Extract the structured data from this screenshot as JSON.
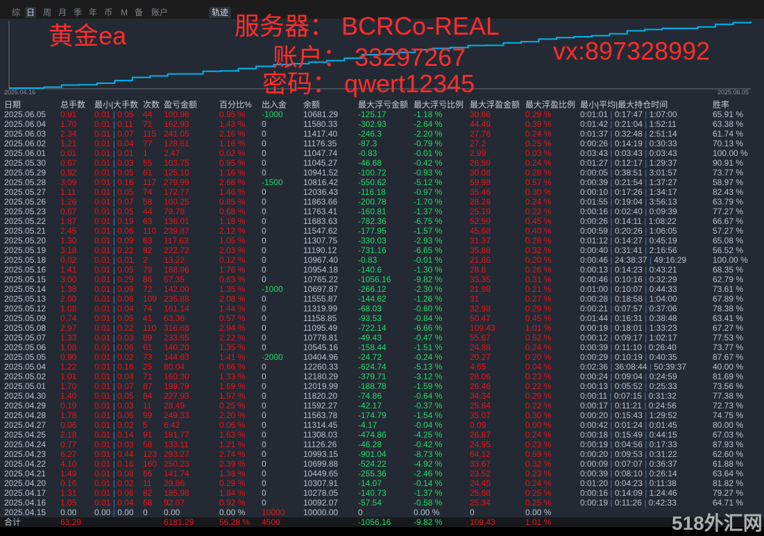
{
  "tabs": [
    "综",
    "日",
    "周",
    "月",
    "季",
    "年",
    "币",
    "M",
    "备",
    "账户"
  ],
  "active_tab": "日",
  "track_button": "轨迹",
  "overlay": {
    "title": "黄金ea",
    "server": "服务器： BCRCo-REAL",
    "account": "账户： 33297267",
    "password": "密码： qwert12345",
    "contact": "vx:897328992"
  },
  "chart": {
    "x_start": "2025.04.16",
    "x_end": "2025.06.05",
    "line_color": "#00b4f0"
  },
  "columns": [
    "日期",
    "总手数",
    "最小|大手数",
    "次数",
    "盈亏金额",
    "百分比%",
    "出入金",
    "余额",
    "最大浮亏金额",
    "最大浮亏比例",
    "最大浮盈金额",
    "最大浮盈比例",
    "最小|平均|最大持仓时间",
    "胜率"
  ],
  "rows": [
    [
      "2025.06.05",
      "0.91",
      "0.01 | 0.05",
      "44",
      "100.96",
      "0.95 %",
      "-1000",
      "10681.29",
      "-125.17",
      "-1.18 %",
      "30.66",
      "0.29 %",
      "0:01:01 | 0:17:47 | 1:07:00",
      "65.91 %"
    ],
    [
      "2025.06.04",
      "1.70",
      "0.01 | 0.11",
      "71",
      "162.93",
      "1.43 %",
      "0",
      "11580.33",
      "-302.93",
      "-2.64 %",
      "44.49",
      "0.39 %",
      "0:01:42 | 0:21:04 | 1:52:11",
      "63.38 %"
    ],
    [
      "2025.06.03",
      "2.34",
      "0.01 | 0.07",
      "115",
      "241.05",
      "2.16 %",
      "0",
      "11417.40",
      "-246.3",
      "-2.20 %",
      "27.76",
      "0.24 %",
      "0:01:37 | 0:32:48 | 2:51:14",
      "61.74 %"
    ],
    [
      "2025.06.02",
      "1.21",
      "0.01 | 0.04",
      "77",
      "128.61",
      "1.16 %",
      "0",
      "11176.35",
      "-87.3",
      "-0.79 %",
      "27.2",
      "0.25 %",
      "0:00:26 | 0:14:19 | 0:30:33",
      "70.13 %"
    ],
    [
      "2025.06.01",
      "0.01",
      "0.01 | 0.01",
      "1",
      "2.47",
      "0.02 %",
      "0",
      "11047.74",
      "-0.83",
      "-0.01 %",
      "2.99",
      "0.03 %",
      "0:03:43 | 0:03:43 | 0:03:43",
      "100.00 %"
    ],
    [
      "2025.05.30",
      "0.67",
      "0.01 | 0.03",
      "55",
      "103.75",
      "0.95 %",
      "0",
      "11045.27",
      "-46.68",
      "-0.42 %",
      "26.59",
      "0.24 %",
      "0:01:27 | 0:12:17 | 1:29:37",
      "90.91 %"
    ],
    [
      "2025.05.29",
      "0.92",
      "0.01 | 0.05",
      "61",
      "125.10",
      "1.16 %",
      "0",
      "10941.52",
      "-100.72",
      "-0.93 %",
      "30.08",
      "0.28 %",
      "0:00:05 | 0:38:51 | 3:01:57",
      "73.77 %"
    ],
    [
      "2025.05.28",
      "3.09",
      "0.01 | 0.16",
      "117",
      "279.99",
      "2.66 %",
      "-1500",
      "10816.42",
      "-550.62",
      "-5.12 %",
      "59.98",
      "0.57 %",
      "0:00:39 | 0:21:54 | 1:37:27",
      "58.97 %"
    ],
    [
      "2025.05.27",
      "1.11",
      "0.01 | 0.05",
      "74",
      "172.77",
      "1.46 %",
      "0",
      "12036.43",
      "-116.18",
      "-0.97 %",
      "35.46",
      "0.30 %",
      "0:00:10 | 0:17:26 | 1:34:17",
      "82.43 %"
    ],
    [
      "2025.05.26",
      "1.26",
      "0.01 | 0.07",
      "58",
      "100.25",
      "0.85 %",
      "0",
      "11863.66",
      "-200.78",
      "-1.70 %",
      "28.28",
      "0.24 %",
      "0:01:55 | 0:19:04 | 3:56:13",
      "63.79 %"
    ],
    [
      "2025.05.23",
      "0.67",
      "0.01 | 0.05",
      "44",
      "79.78",
      "0.68 %",
      "0",
      "11763.41",
      "-160.81",
      "-1.37 %",
      "25.19",
      "0.22 %",
      "0:00:16 | 0:02:40 | 0:09:39",
      "77.27 %"
    ],
    [
      "2025.05.22",
      "1.87",
      "0.01 | 0.19",
      "63",
      "136.01",
      "1.18 %",
      "0",
      "11683.63",
      "-782.36",
      "-6.75 %",
      "52.59",
      "0.45 %",
      "0:00:26 | 0:14:11 | 1:08:22",
      "66.67 %"
    ],
    [
      "2025.05.21",
      "2.45",
      "0.01 | 0.06",
      "110",
      "239.87",
      "2.12 %",
      "0",
      "11547.62",
      "-177.95",
      "-1.57 %",
      "45.68",
      "0.40 %",
      "0:00:59 | 0:20:26 | 1:06:05",
      "57.27 %"
    ],
    [
      "2025.05.20",
      "1.30",
      "0.01 | 0.09",
      "63",
      "117.63",
      "1.05 %",
      "0",
      "11307.75",
      "-330.03",
      "-2.93 %",
      "31.37",
      "0.28 %",
      "0:01:12 | 0:14:27 | 0:45:19",
      "65.08 %"
    ],
    [
      "2025.05.19",
      "3.18",
      "0.01 | 0.22",
      "92",
      "222.72",
      "2.03 %",
      "0",
      "11190.12",
      "-731.16",
      "-6.65 %",
      "35.88",
      "0.32 %",
      "0:00:40 | 0:31:41 | 2:16:56",
      "56.52 %"
    ],
    [
      "2025.05.18",
      "0.02",
      "0.01 | 0.01",
      "2",
      "13.22",
      "0.12 %",
      "0",
      "10967.40",
      "-0.83",
      "-0.01 %",
      "21.86",
      "0.20 %",
      "0:00:46 | 24:38:37 | 49:16:29",
      "100.00 %"
    ],
    [
      "2025.05.16",
      "1.41",
      "0.01 | 0.05",
      "79",
      "188.96",
      "1.76 %",
      "0",
      "10954.18",
      "-140.6",
      "-1.30 %",
      "28.8",
      "0.26 %",
      "0:00:13 | 0:14:23 | 0:43:21",
      "68.35 %"
    ],
    [
      "2025.05.15",
      "3.00",
      "0.01 | 0.29",
      "86",
      "67.35",
      "0.63 %",
      "0",
      "10765.22",
      "-1056.16",
      "-9.82 %",
      "33.35",
      "0.31 %",
      "0:00:46 | 0:10:16 | 0:32:29",
      "62.79 %"
    ],
    [
      "2025.05.14",
      "1.38",
      "0.01 | 0.09",
      "72",
      "142.00",
      "1.35 %",
      "-1000",
      "10697.87",
      "-266.12",
      "-2.30 %",
      "21.98",
      "0.21 %",
      "0:01:00 | 0:10:07 | 0:44:33",
      "73.61 %"
    ],
    [
      "2025.05.13",
      "2.00",
      "0.01 | 0.06",
      "109",
      "235.88",
      "2.08 %",
      "0",
      "11555.87",
      "-144.62",
      "-1.26 %",
      "31",
      "0.27 %",
      "0:00:28 | 0:18:58 | 1:04:00",
      "67.89 %"
    ],
    [
      "2025.05.12",
      "1.08",
      "0.01 | 0.04",
      "74",
      "161.14",
      "1.44 %",
      "0",
      "11319.99",
      "-68.03",
      "-0.60 %",
      "32.98",
      "0.29 %",
      "0:00:21 | 0:07:57 | 0:37:06",
      "78.38 %"
    ],
    [
      "2025.05.09",
      "0.74",
      "0.01 | 0.05",
      "41",
      "63.36",
      "0.57 %",
      "0",
      "11158.85",
      "-93.53",
      "-0.84 %",
      "50.47",
      "0.45 %",
      "0:01:44 | 0:16:31 | 0:38:48",
      "63.41 %"
    ],
    [
      "2025.05.08",
      "2.97",
      "0.01 | 0.22",
      "110",
      "316.68",
      "2.94 %",
      "0",
      "11095.49",
      "-722.14",
      "-6.66 %",
      "109.43",
      "1.01 %",
      "0:00:19 | 0:18:01 | 1:33:23",
      "67.27 %"
    ],
    [
      "2025.05.07",
      "1.33",
      "0.01 | 0.03",
      "89",
      "233.65",
      "2.22 %",
      "0",
      "10778.81",
      "-49.43",
      "-0.47 %",
      "55.67",
      "0.52 %",
      "0:00:12 | 0:09:17 | 1:02:17",
      "77.53 %"
    ],
    [
      "2025.05.06",
      "1.08",
      "0.01 | 0.06",
      "61",
      "140.20",
      "1.35 %",
      "0",
      "10545.16",
      "-158.44",
      "-1.51 %",
      "24.88",
      "0.24 %",
      "0:00:39 | 0:11:10 | 0:26:40",
      "73.77 %"
    ],
    [
      "2025.05.05",
      "0.90",
      "0.01 | 0.02",
      "73",
      "144.63",
      "1.41 %",
      "-2000",
      "10404.96",
      "-24.72",
      "-0.24 %",
      "20.27",
      "0.20 %",
      "0:00:29 | 0:10:19 | 0:40:35",
      "87.67 %"
    ],
    [
      "2025.05.04",
      "1.22",
      "0.01 | 0.16",
      "25",
      "80.04",
      "0.66 %",
      "0",
      "12260.33",
      "-624.74",
      "-5.13 %",
      "4.65",
      "0.04 %",
      "0:02:36 | 36:08:44 | 50:39:37",
      "40.00 %"
    ],
    [
      "2025.05.02",
      "1.01",
      "0.01 | 0.04",
      "71",
      "160.30",
      "1.33 %",
      "0",
      "12180.29",
      "-379.71",
      "-3.12 %",
      "28.06",
      "0.23 %",
      "0:00:24 | 0:09:04 | 0:24:59",
      "81.69 %"
    ],
    [
      "2025.05.01",
      "1.70",
      "0.01 | 0.07",
      "87",
      "199.79",
      "1.69 %",
      "0",
      "12019.99",
      "-188.78",
      "-1.59 %",
      "26.46",
      "0.22 %",
      "0:00:13 | 0:05:52 | 0:25:33",
      "73.56 %"
    ],
    [
      "2025.04.30",
      "1.40",
      "0.01 | 0.05",
      "84",
      "227.93",
      "1.97 %",
      "0",
      "11820.20",
      "-74.86",
      "-0.64 %",
      "34.34",
      "0.29 %",
      "0:00:11 | 0:07:15 | 0:31:32",
      "77.38 %"
    ],
    [
      "2025.04.29",
      "0.19",
      "0.01 | 0.03",
      "11",
      "28.49",
      "0.25 %",
      "0",
      "11592.27",
      "-42.17",
      "-0.37 %",
      "25.84",
      "0.22 %",
      "0:00:17 | 0:11:21 | 0:24:56",
      "72.73 %"
    ],
    [
      "2025.04.28",
      "1.78",
      "0.01 | 0.06",
      "99",
      "249.33",
      "2.20 %",
      "0",
      "11563.78",
      "-174.79",
      "-1.54 %",
      "35.07",
      "0.30 %",
      "0:00:20 | 0:15:43 | 1:29:52",
      "74.75 %"
    ],
    [
      "2025.04.27",
      "0.06",
      "0.01 | 0.02",
      "5",
      "6.42",
      "0.06 %",
      "0",
      "11314.45",
      "-4.17",
      "-0.04 %",
      "0.09",
      "0.00 %",
      "0:00:42 | 0:01:24 | 0:01:45",
      "80.00 %"
    ],
    [
      "2025.04.25",
      "2.18",
      "0.01 | 0.14",
      "91",
      "181.77",
      "1.63 %",
      "0",
      "11308.03",
      "-474.86",
      "-4.25 %",
      "26.87",
      "0.24 %",
      "0:00:18 | 0:15:49 | 0:44:15",
      "67.03 %"
    ],
    [
      "2025.04.24",
      "0.77",
      "0.01 | 0.03",
      "58",
      "133.11",
      "1.21 %",
      "0",
      "11126.26",
      "-46.28",
      "-0.42 %",
      "24.95",
      "0.23 %",
      "0:00:19 | 0:04:56 | 0:17:33",
      "87.93 %"
    ],
    [
      "2025.04.23",
      "6.27",
      "0.01 | 0.44",
      "123",
      "293.27",
      "2.74 %",
      "0",
      "10993.15",
      "-901.04",
      "-8.73 %",
      "64.12",
      "0.59 %",
      "0:00:20 | 0:09:53 | 0:31:22",
      "62.60 %"
    ],
    [
      "2025.04.22",
      "4.10",
      "0.01 | 0.16",
      "160",
      "250.23",
      "2.39 %",
      "0",
      "10699.88",
      "-524.22",
      "-4.92 %",
      "33.67",
      "0.32 %",
      "0:00:09 | 0:07:07 | 0:36:37",
      "61.88 %"
    ],
    [
      "2025.04.21",
      "1.49",
      "0.01 | 0.08",
      "66",
      "141.74",
      "1.38 %",
      "0",
      "10449.65",
      "-255.36",
      "-2.46 %",
      "23.52",
      "0.23 %",
      "0:00:39 | 0:08:10 | 0:26:14",
      "63.64 %"
    ],
    [
      "2025.04.20",
      "0.16",
      "0.01 | 0.02",
      "11",
      "29.86",
      "0.29 %",
      "0",
      "10307.91",
      "-14.07",
      "-0.14 %",
      "24.45",
      "0.24 %",
      "0:01:20 | 0:04:23 | 0:11:38",
      "81.82 %"
    ],
    [
      "2025.04.17",
      "1.31",
      "0.01 | 0.06",
      "82",
      "185.98",
      "1.84 %",
      "0",
      "10278.05",
      "-140.73",
      "-1.37 %",
      "25.68",
      "0.25 %",
      "0:00:16 | 0:14:09 | 1:24:46",
      "79.27 %"
    ],
    [
      "2025.04.16",
      "1.05",
      "0.01 | 0.04",
      "68",
      "92.07",
      "0.92 %",
      "0",
      "10092.07",
      "-57.54",
      "-0.58 %",
      "25.34",
      "0.25 %",
      "0:00:19 | 0:11:26 | 0:42:33",
      "64.71 %"
    ],
    [
      "2025.04.15",
      "0.00",
      "0.00 | 0.00",
      "0",
      "0.00",
      "0.00 %",
      "10000",
      "10000.00",
      "0",
      "0.00 %",
      "0",
      "0.00 %",
      "",
      ""
    ]
  ],
  "total": [
    "合计",
    "63.29",
    "",
    "",
    "6181.29",
    "56.28 %",
    "4500",
    "",
    "-1056.16",
    "-9.82 %",
    "109.43",
    "1.01 %",
    "",
    ""
  ],
  "watermark": "518外汇网",
  "colors": {
    "profit": "#e8141b",
    "loss": "#1fdc6a",
    "text": "#b7c2d2",
    "background": "#242a33"
  }
}
